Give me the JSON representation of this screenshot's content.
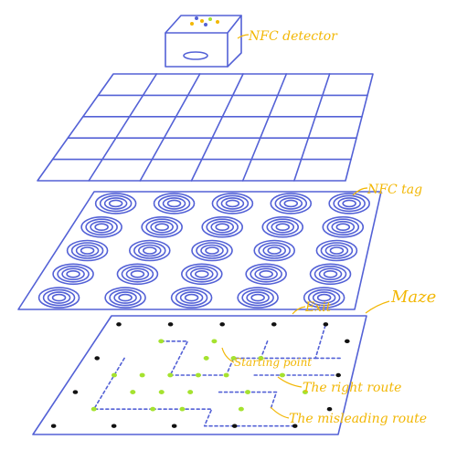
{
  "labels": {
    "nfc_detector": "NFC detector",
    "nfc_tag": "NFC tag",
    "exit": "Exit",
    "maze": "Maze",
    "starting_point": "Starting point",
    "right_route": "The right route",
    "misleading_route": "The misleading route"
  },
  "layers": [
    "detector",
    "grid",
    "nfc-tags",
    "maze"
  ],
  "grid_size": {
    "rows": 5,
    "cols": 6
  },
  "tag_rows": [
    5,
    5,
    5,
    5,
    5
  ],
  "colors": {
    "line": "#5361d6",
    "label": "#f2b705",
    "misleading_dot": "#111111",
    "right_dot": "#a5e22f",
    "route_dot": "#6b78e0"
  }
}
